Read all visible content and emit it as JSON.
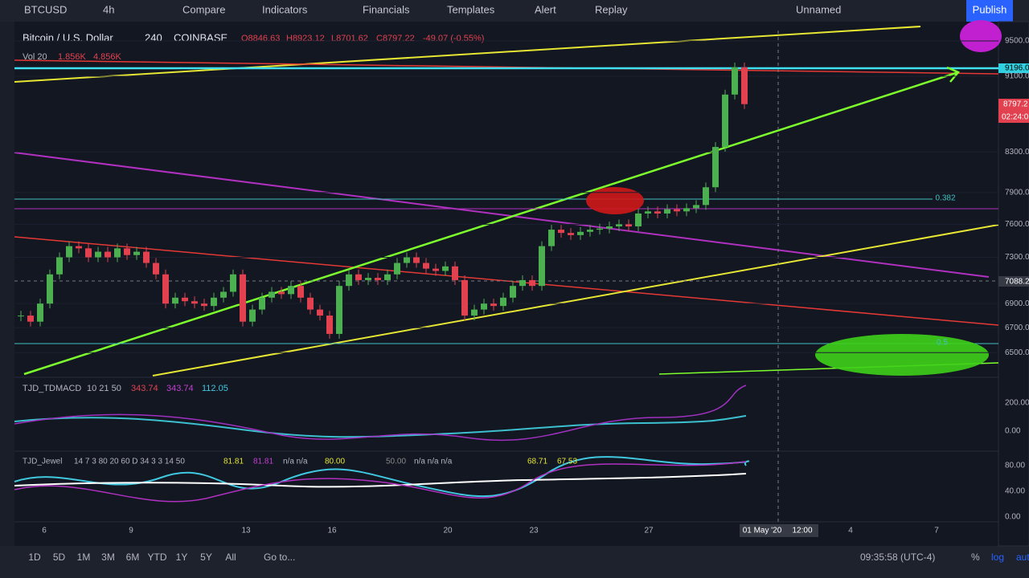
{
  "toolbar": {
    "symbol": "BTCUSD",
    "interval": "4h",
    "compare": "Compare",
    "indicators": "Indicators",
    "financials": "Financials",
    "templates": "Templates",
    "alert": "Alert",
    "replay": "Replay",
    "layout": "Unnamed",
    "publish": "Publish"
  },
  "legend": {
    "name": "Bitcoin / U.S. Dollar",
    "interval": "240",
    "exchange": "COINBASE",
    "open": "O8846.63",
    "high": "H8923.12",
    "low": "L8701.62",
    "close": "C8797.22",
    "change": "-49.07 (-0.55%)",
    "volume": "Vol 20",
    "vol1": "1.856K",
    "vol2": "4.856K"
  },
  "macd": {
    "name": "TJD_TDMACD",
    "params": "10 21 50",
    "v1": "343.74",
    "v2": "343.74",
    "v3": "112.05",
    "ticks": [
      "200.00",
      "0.00"
    ]
  },
  "jewel": {
    "name": "TJD_Jewel",
    "params": "14 7 3 80 20 60 D 34 3 3 14 50",
    "v1": "81.81",
    "v2": "81.81",
    "v3": "n/a n/a",
    "v4": "80.00",
    "v5": "50.00",
    "v6": "n/a n/a n/a",
    "v7": "68.71",
    "v8": "67.53",
    "ticks": [
      "80.00",
      "40.00",
      "0.00"
    ]
  },
  "chart": {
    "log_scale": true,
    "up_color": "#4caf50",
    "down_color": "#e2424f",
    "ylim": [
      6320,
      9622
    ],
    "yticks": [
      {
        "value": 9500,
        "label": "9500.0"
      },
      {
        "value": 9100,
        "label": "9100.0"
      },
      {
        "value": 8300,
        "label": "8300.0"
      },
      {
        "value": 7900,
        "label": "7900.0"
      },
      {
        "value": 7600,
        "label": "7600.0"
      },
      {
        "value": 7300,
        "label": "7300.0"
      },
      {
        "value": 6900,
        "label": "6900.0"
      },
      {
        "value": 6700,
        "label": "6700.0"
      },
      {
        "value": 6500,
        "label": "6500.0"
      }
    ],
    "closes": [
      6800,
      6750,
      6900,
      7150,
      7300,
      7400,
      7380,
      7300,
      7350,
      7300,
      7380,
      7320,
      7350,
      7250,
      7150,
      6900,
      6950,
      6920,
      6900,
      6880,
      6950,
      7000,
      7150,
      6750,
      6850,
      6950,
      7000,
      6980,
      7050,
      6950,
      6850,
      6800,
      6650,
      7050,
      7150,
      7100,
      7120,
      7100,
      7150,
      7250,
      7300,
      7250,
      7200,
      7180,
      7220,
      7100,
      6800,
      6850,
      6900,
      6880,
      6950,
      7050,
      7100,
      7050,
      7400,
      7550,
      7520,
      7500,
      7530,
      7550,
      7560,
      7580,
      7600,
      7580,
      7700,
      7720,
      7700,
      7740,
      7720,
      7750,
      7780,
      7950,
      8350,
      8900,
      9200,
      8797
    ],
    "fib_labels": [
      "0.382",
      "0.5"
    ],
    "price_tags": {
      "level": "9196.0",
      "last": "8797.2",
      "countdown": "02:24:0",
      "cursor": "7088.2"
    },
    "dates": [
      "6",
      "9",
      "13",
      "16",
      "20",
      "23",
      "27",
      "01 May '20",
      "12:00",
      "4",
      "7"
    ]
  },
  "bottombar": {
    "ranges": [
      "1D",
      "5D",
      "1M",
      "3M",
      "6M",
      "YTD",
      "1Y",
      "5Y",
      "All"
    ],
    "goto": "Go to...",
    "clock": "09:35:58 (UTC-4)",
    "percent": "%",
    "log": "log",
    "auto": "auto"
  }
}
